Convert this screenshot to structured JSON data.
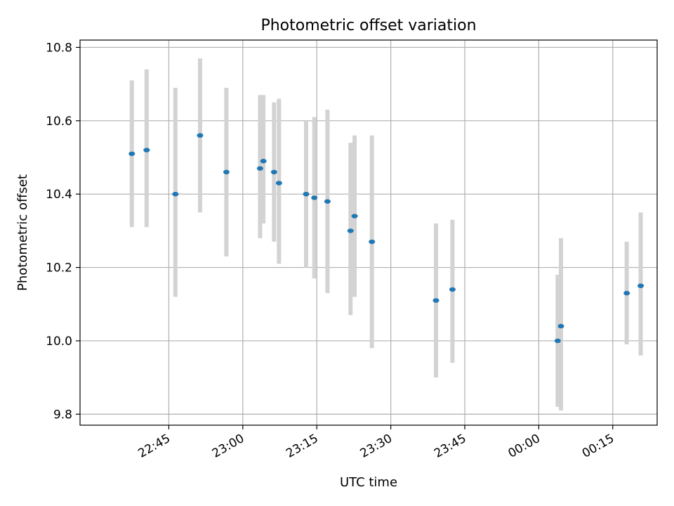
{
  "chart_data": {
    "type": "scatter",
    "title": "Photometric offset variation",
    "xlabel": "UTC time",
    "ylabel": "Photometric offset",
    "grid": true,
    "x_type": "time",
    "xlim": [
      "22:27",
      "00:24"
    ],
    "ylim": [
      9.77,
      10.82
    ],
    "yticks": [
      9.8,
      10.0,
      10.2,
      10.4,
      10.6,
      10.8
    ],
    "xticks": [
      "22:45",
      "23:00",
      "23:15",
      "23:30",
      "23:45",
      "00:00",
      "00:15"
    ],
    "colors": {
      "points": "#1f77b4",
      "errorbars": "#d3d3d3",
      "grid": "#b0b0b0"
    },
    "series": [
      {
        "points": [
          {
            "t": "22:37:30",
            "y": 10.51,
            "low": 10.31,
            "high": 10.71
          },
          {
            "t": "22:40:30",
            "y": 10.52,
            "low": 10.31,
            "high": 10.74
          },
          {
            "t": "22:46:20",
            "y": 10.4,
            "low": 10.12,
            "high": 10.69
          },
          {
            "t": "22:51:20",
            "y": 10.56,
            "low": 10.35,
            "high": 10.77
          },
          {
            "t": "22:56:40",
            "y": 10.46,
            "low": 10.23,
            "high": 10.69
          },
          {
            "t": "23:03:30",
            "y": 10.47,
            "low": 10.28,
            "high": 10.67
          },
          {
            "t": "23:04:10",
            "y": 10.49,
            "low": 10.32,
            "high": 10.67
          },
          {
            "t": "23:06:20",
            "y": 10.46,
            "low": 10.27,
            "high": 10.65
          },
          {
            "t": "23:07:20",
            "y": 10.43,
            "low": 10.21,
            "high": 10.66
          },
          {
            "t": "23:12:50",
            "y": 10.4,
            "low": 10.2,
            "high": 10.6
          },
          {
            "t": "23:14:30",
            "y": 10.39,
            "low": 10.17,
            "high": 10.61
          },
          {
            "t": "23:17:10",
            "y": 10.38,
            "low": 10.13,
            "high": 10.63
          },
          {
            "t": "23:21:50",
            "y": 10.3,
            "low": 10.07,
            "high": 10.54
          },
          {
            "t": "23:22:40",
            "y": 10.34,
            "low": 10.12,
            "high": 10.56
          },
          {
            "t": "23:26:10",
            "y": 10.27,
            "low": 9.98,
            "high": 10.56
          },
          {
            "t": "23:39:10",
            "y": 10.11,
            "low": 9.9,
            "high": 10.32
          },
          {
            "t": "23:42:30",
            "y": 10.14,
            "low": 9.94,
            "high": 10.33
          },
          {
            "t": "00:03:50",
            "y": 10.0,
            "low": 9.82,
            "high": 10.18
          },
          {
            "t": "00:04:30",
            "y": 10.04,
            "low": 9.81,
            "high": 10.28
          },
          {
            "t": "00:17:50",
            "y": 10.13,
            "low": 9.99,
            "high": 10.27
          },
          {
            "t": "00:20:40",
            "y": 10.15,
            "low": 9.96,
            "high": 10.35
          }
        ]
      }
    ]
  }
}
